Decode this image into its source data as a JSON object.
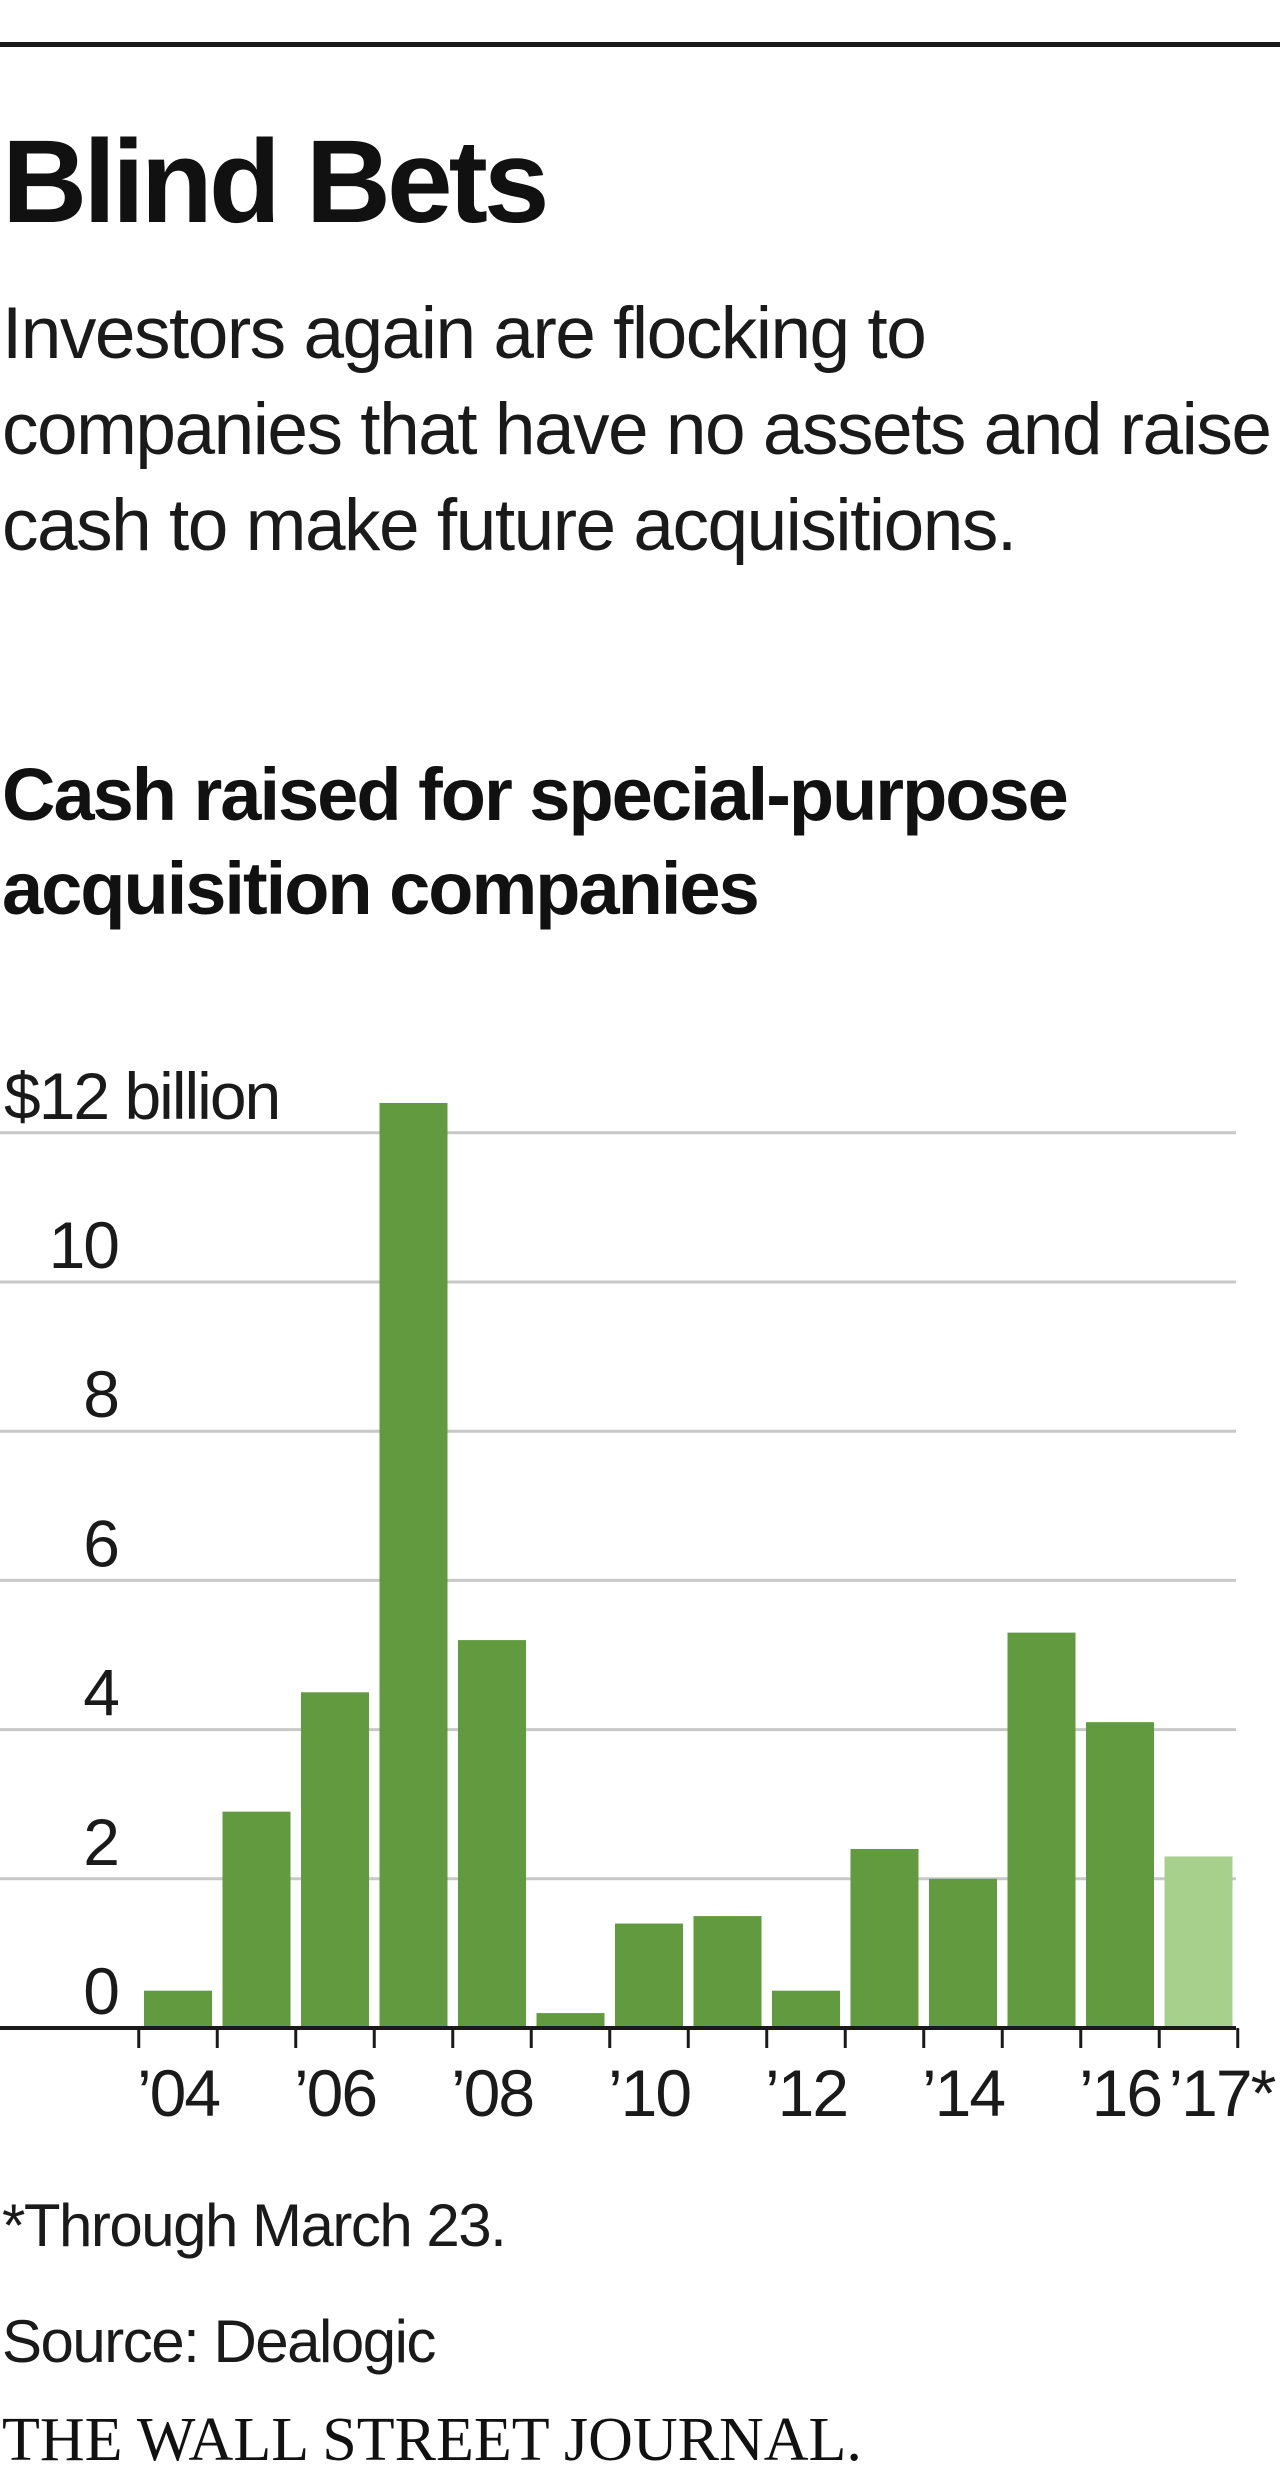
{
  "headline": "Blind Bets",
  "dek": "Investors again are flocking to companies that have no assets and raise cash to make future acquisitions.",
  "chart_title": "Cash raised for special-purpose acquisition companies",
  "chart_data": {
    "type": "bar",
    "title": "Cash raised for special-purpose acquisition companies",
    "xlabel": "",
    "ylabel": "",
    "y_unit_label": "$12 billion",
    "ylim": [
      0,
      12
    ],
    "y_ticks": [
      0,
      2,
      4,
      6,
      8,
      10,
      12
    ],
    "y_tick_labels": [
      "0",
      "2",
      "4",
      "6",
      "8",
      "10",
      "$12 billion"
    ],
    "grid": true,
    "categories": [
      "2004",
      "2005",
      "2006",
      "2007",
      "2008",
      "2009",
      "2010",
      "2011",
      "2012",
      "2013",
      "2014",
      "2015",
      "2016",
      "2017"
    ],
    "x_tick_labels": [
      "’04",
      "",
      "’06",
      "",
      "’08",
      "",
      "’10",
      "",
      "’12",
      "",
      "’14",
      "",
      "’16",
      "’17*"
    ],
    "values": [
      0.5,
      2.9,
      4.5,
      12.4,
      5.2,
      0.2,
      1.4,
      1.5,
      0.5,
      2.4,
      2.0,
      5.3,
      4.1,
      2.3
    ],
    "colors": {
      "bar": "#629a3f",
      "partial_year_bar": "#a8d08d",
      "gridline": "#c8c8c8",
      "axis": "#1a1a1a"
    },
    "partial_categories": [
      "2017"
    ]
  },
  "footnote": "*Through March 23.",
  "source": "Source: Dealogic",
  "logo": "THE WALL STREET JOURNAL."
}
